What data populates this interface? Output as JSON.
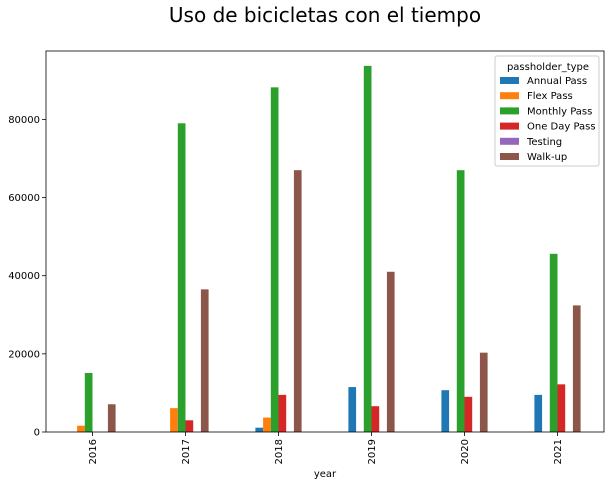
{
  "chart_data": {
    "type": "bar",
    "title": "Uso de bicicletas con el tiempo",
    "xlabel": "year",
    "ylabel": "",
    "categories": [
      "2016",
      "2017",
      "2018",
      "2019",
      "2020",
      "2021"
    ],
    "ylim": [
      0,
      97500
    ],
    "yticks": [
      0,
      20000,
      40000,
      60000,
      80000
    ],
    "ytick_labels": [
      "0",
      "20000",
      "40000",
      "60000",
      "80000"
    ],
    "legend_title": "passholder_type",
    "legend_position": "top-right",
    "grid": false,
    "series": [
      {
        "name": "Annual Pass",
        "color": "#1f77b4",
        "values": [
          0,
          0,
          1100,
          11500,
          10700,
          9500
        ]
      },
      {
        "name": "Flex Pass",
        "color": "#ff7f0e",
        "values": [
          1600,
          6100,
          3700,
          0,
          0,
          0
        ]
      },
      {
        "name": "Monthly Pass",
        "color": "#2ca02c",
        "values": [
          15100,
          79000,
          88200,
          93700,
          67000,
          45600
        ]
      },
      {
        "name": "One Day Pass",
        "color": "#d62728",
        "values": [
          0,
          3000,
          9500,
          6600,
          9000,
          12200
        ]
      },
      {
        "name": "Testing",
        "color": "#9467bd",
        "values": [
          0,
          0,
          0,
          0,
          0,
          0
        ]
      },
      {
        "name": "Walk-up",
        "color": "#8c564b",
        "values": [
          7100,
          36500,
          67000,
          41000,
          20300,
          32400
        ]
      }
    ]
  }
}
